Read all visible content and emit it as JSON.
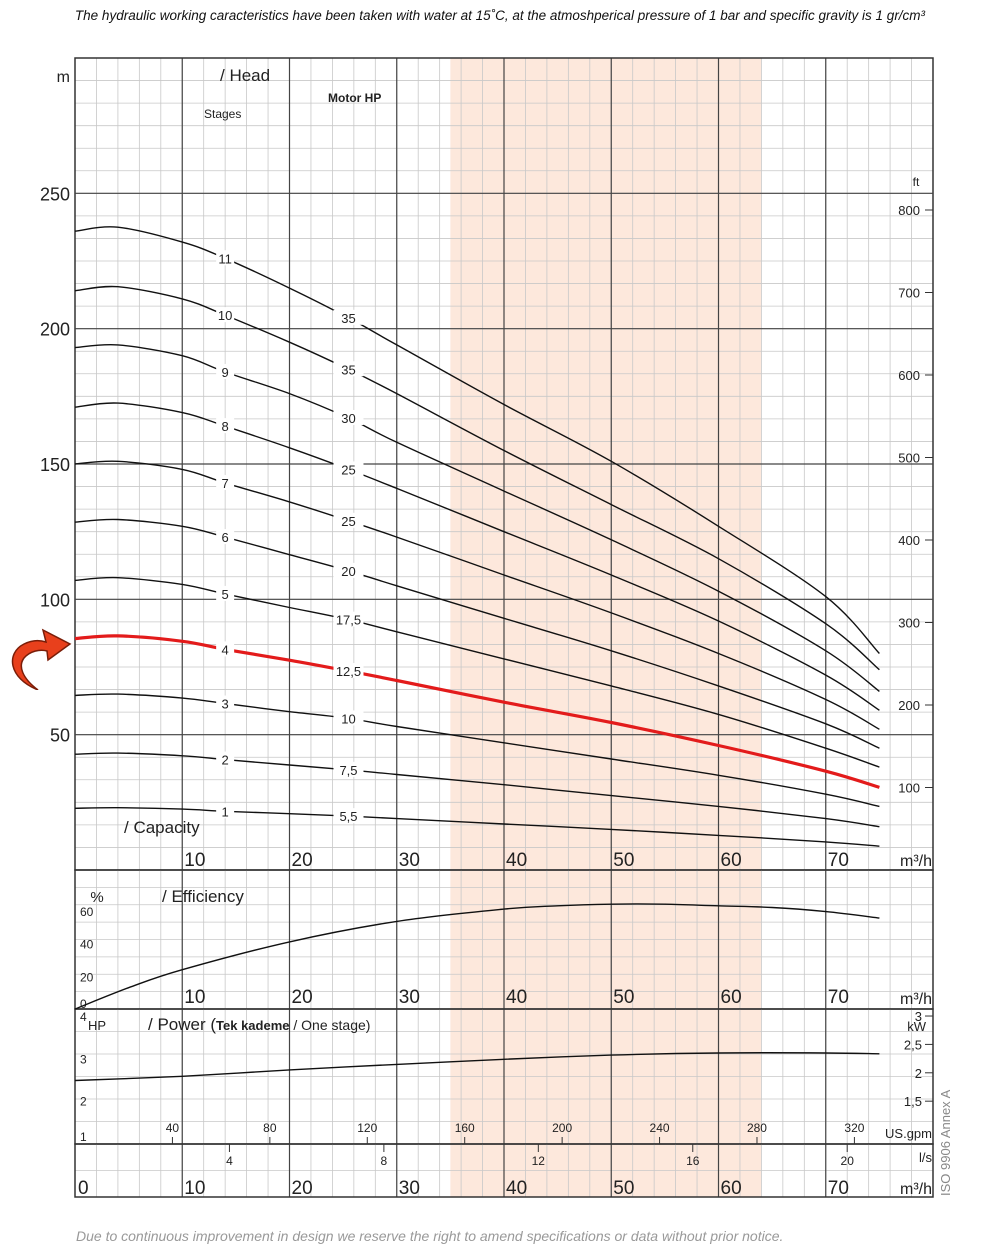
{
  "notes": {
    "top": "The hydraulic working caracteristics have been taken with water at 15˚C, at the atmoshperical pressure of 1 bar and specific gravity is 1 gr/cm³",
    "bottom": "Due to continuous improvement in design we reserve the right to amend specifications or data without prior notice.",
    "iso": "ISO 9906 Annex A"
  },
  "arrow": {
    "icon": "curved-arrow-icon",
    "color": "#e8401c"
  },
  "chart_data": [
    {
      "type": "line",
      "panel": "head",
      "title": "/ Head",
      "xlabel": "/ Capacity",
      "x_unit": "m³/h",
      "y_unit_left": "m",
      "y_unit_right": "ft",
      "stages_label": "Stages",
      "motor_label": "Motor HP",
      "xlim": [
        0,
        80
      ],
      "ylim": [
        0,
        300
      ],
      "x_ticks": [
        10,
        20,
        30,
        40,
        50,
        60,
        70
      ],
      "y_ticks": [
        50,
        100,
        150,
        200,
        250
      ],
      "y_ticks_right": [
        100,
        200,
        300,
        400,
        500,
        600,
        700,
        800
      ],
      "highlight_band": [
        35,
        64
      ],
      "highlight_color": "#fde8dc",
      "highlight_series_color": "#e31b1b",
      "stage_label_x": 14,
      "motor_label_x": 25.5,
      "series": [
        {
          "name": "11",
          "motor": "35",
          "highlight": false,
          "points": [
            [
              0,
              236
            ],
            [
              4,
              237.5
            ],
            [
              10,
              232
            ],
            [
              14,
              226
            ],
            [
              20,
              215
            ],
            [
              25.5,
              204
            ],
            [
              30,
              194
            ],
            [
              40,
              172
            ],
            [
              50,
              151
            ],
            [
              60,
              127
            ],
            [
              70,
              101
            ],
            [
              75,
              80
            ]
          ]
        },
        {
          "name": "10",
          "motor": "35",
          "highlight": false,
          "points": [
            [
              0,
              214
            ],
            [
              4,
              215.5
            ],
            [
              10,
              211
            ],
            [
              14,
              205
            ],
            [
              20,
              195
            ],
            [
              25.5,
              185
            ],
            [
              30,
              176
            ],
            [
              40,
              155
            ],
            [
              50,
              135
            ],
            [
              60,
              115
            ],
            [
              70,
              91
            ],
            [
              75,
              74
            ]
          ]
        },
        {
          "name": "9",
          "motor": "30",
          "highlight": false,
          "points": [
            [
              0,
              193
            ],
            [
              4,
              194
            ],
            [
              10,
              190
            ],
            [
              14,
              184
            ],
            [
              20,
              176
            ],
            [
              25.5,
              167
            ],
            [
              30,
              158
            ],
            [
              40,
              140
            ],
            [
              50,
              122
            ],
            [
              60,
              103
            ],
            [
              70,
              81
            ],
            [
              75,
              66
            ]
          ]
        },
        {
          "name": "8",
          "motor": "25",
          "highlight": false,
          "points": [
            [
              0,
              171
            ],
            [
              4,
              172.5
            ],
            [
              10,
              169
            ],
            [
              14,
              164
            ],
            [
              20,
              156
            ],
            [
              25.5,
              148
            ],
            [
              30,
              141
            ],
            [
              40,
              125
            ],
            [
              50,
              109
            ],
            [
              60,
              92
            ],
            [
              70,
              72
            ],
            [
              75,
              59
            ]
          ]
        },
        {
          "name": "7",
          "motor": "25",
          "highlight": false,
          "points": [
            [
              0,
              150
            ],
            [
              4,
              151
            ],
            [
              10,
              148
            ],
            [
              14,
              143
            ],
            [
              20,
              136
            ],
            [
              25.5,
              129
            ],
            [
              30,
              123
            ],
            [
              40,
              109
            ],
            [
              50,
              95
            ],
            [
              60,
              80
            ],
            [
              70,
              63
            ],
            [
              75,
              52
            ]
          ]
        },
        {
          "name": "6",
          "motor": "20",
          "highlight": false,
          "points": [
            [
              0,
              128.5
            ],
            [
              4,
              129.5
            ],
            [
              10,
              127
            ],
            [
              14,
              123
            ],
            [
              20,
              116.5
            ],
            [
              25.5,
              110.5
            ],
            [
              30,
              105
            ],
            [
              40,
              93
            ],
            [
              50,
              81
            ],
            [
              60,
              68
            ],
            [
              70,
              54
            ],
            [
              75,
              45
            ]
          ]
        },
        {
          "name": "5",
          "motor": "17,5",
          "highlight": false,
          "points": [
            [
              0,
              107
            ],
            [
              4,
              108
            ],
            [
              10,
              105.5
            ],
            [
              14,
              102
            ],
            [
              20,
              97
            ],
            [
              25.5,
              92.5
            ],
            [
              30,
              88
            ],
            [
              40,
              78
            ],
            [
              50,
              68
            ],
            [
              60,
              57.5
            ],
            [
              70,
              45
            ],
            [
              75,
              38
            ]
          ]
        },
        {
          "name": "4",
          "motor": "12,5",
          "highlight": true,
          "points": [
            [
              0,
              85.5
            ],
            [
              4,
              86.5
            ],
            [
              10,
              84.5
            ],
            [
              14,
              81.5
            ],
            [
              20,
              77.5
            ],
            [
              25.5,
              73.5
            ],
            [
              30,
              70
            ],
            [
              40,
              62
            ],
            [
              50,
              54.5
            ],
            [
              60,
              46
            ],
            [
              70,
              36.5
            ],
            [
              75,
              30.5
            ]
          ]
        },
        {
          "name": "3",
          "motor": "10",
          "highlight": false,
          "points": [
            [
              0,
              64.5
            ],
            [
              4,
              65
            ],
            [
              10,
              63.5
            ],
            [
              14,
              61.5
            ],
            [
              20,
              58.5
            ],
            [
              25.5,
              56
            ],
            [
              30,
              53
            ],
            [
              40,
              47
            ],
            [
              50,
              41
            ],
            [
              60,
              35
            ],
            [
              70,
              28
            ],
            [
              75,
              23.5
            ]
          ]
        },
        {
          "name": "2",
          "motor": "7,5",
          "highlight": false,
          "points": [
            [
              0,
              42.8
            ],
            [
              4,
              43.2
            ],
            [
              10,
              42.2
            ],
            [
              14,
              40.8
            ],
            [
              20,
              38.8
            ],
            [
              25.5,
              37
            ],
            [
              30,
              35.3
            ],
            [
              40,
              31.5
            ],
            [
              50,
              27.5
            ],
            [
              60,
              23.5
            ],
            [
              70,
              19
            ],
            [
              75,
              16
            ]
          ]
        },
        {
          "name": "1",
          "motor": "5,5",
          "highlight": false,
          "points": [
            [
              0,
              22.8
            ],
            [
              4,
              23
            ],
            [
              10,
              22.5
            ],
            [
              14,
              21.7
            ],
            [
              20,
              20.8
            ],
            [
              25.5,
              19.9
            ],
            [
              30,
              19
            ],
            [
              40,
              17
            ],
            [
              50,
              15
            ],
            [
              60,
              12.8
            ],
            [
              70,
              10.4
            ],
            [
              75,
              8.8
            ]
          ]
        }
      ]
    },
    {
      "type": "line",
      "panel": "efficiency",
      "title": "/ Efficiency",
      "y_unit": "%",
      "x_unit": "m³/h",
      "xlim": [
        0,
        80
      ],
      "ylim": [
        0,
        80
      ],
      "y_ticks": [
        0,
        20,
        40,
        60
      ],
      "x_ticks": [
        10,
        20,
        30,
        40,
        50,
        60,
        70
      ],
      "series": [
        {
          "name": "",
          "points": [
            [
              0,
              0
            ],
            [
              5,
              13
            ],
            [
              10,
              24
            ],
            [
              20,
              41
            ],
            [
              30,
              53.5
            ],
            [
              40,
              61
            ],
            [
              45,
              63
            ],
            [
              50,
              64
            ],
            [
              55,
              64
            ],
            [
              60,
              63
            ],
            [
              65,
              62
            ],
            [
              70,
              59.5
            ],
            [
              75,
              55.5
            ]
          ]
        }
      ]
    },
    {
      "type": "line",
      "panel": "power",
      "title": "/ Power",
      "subtitle_bold": "Tek kademe",
      "subtitle_rest": "/ One stage)",
      "y_unit_left": "HP",
      "y_unit_right": "kW",
      "xlim": [
        0,
        80
      ],
      "ylim": [
        1,
        4
      ],
      "y_ticks": [
        1,
        2,
        3,
        4
      ],
      "y_ticks_right": [
        "1,5",
        "2",
        "2,5",
        "3"
      ],
      "series": [
        {
          "name": "",
          "points": [
            [
              0,
              2.5
            ],
            [
              10,
              2.6
            ],
            [
              20,
              2.75
            ],
            [
              30,
              2.88
            ],
            [
              40,
              3.0
            ],
            [
              50,
              3.1
            ],
            [
              60,
              3.15
            ],
            [
              70,
              3.15
            ],
            [
              75,
              3.13
            ]
          ]
        }
      ]
    },
    {
      "type": "axis",
      "panel": "units",
      "gpm_label": "US.gpm",
      "gpm_ticks": [
        "40",
        "80",
        "120",
        "160",
        "200",
        "240",
        "280",
        "320"
      ],
      "ls_label": "l/s",
      "ls_ticks": [
        "4",
        "8",
        "12",
        "16",
        "20"
      ],
      "m3h_label": "m³/h",
      "m3h_ticks": [
        "0",
        "10",
        "20",
        "30",
        "40",
        "50",
        "60",
        "70"
      ]
    }
  ]
}
